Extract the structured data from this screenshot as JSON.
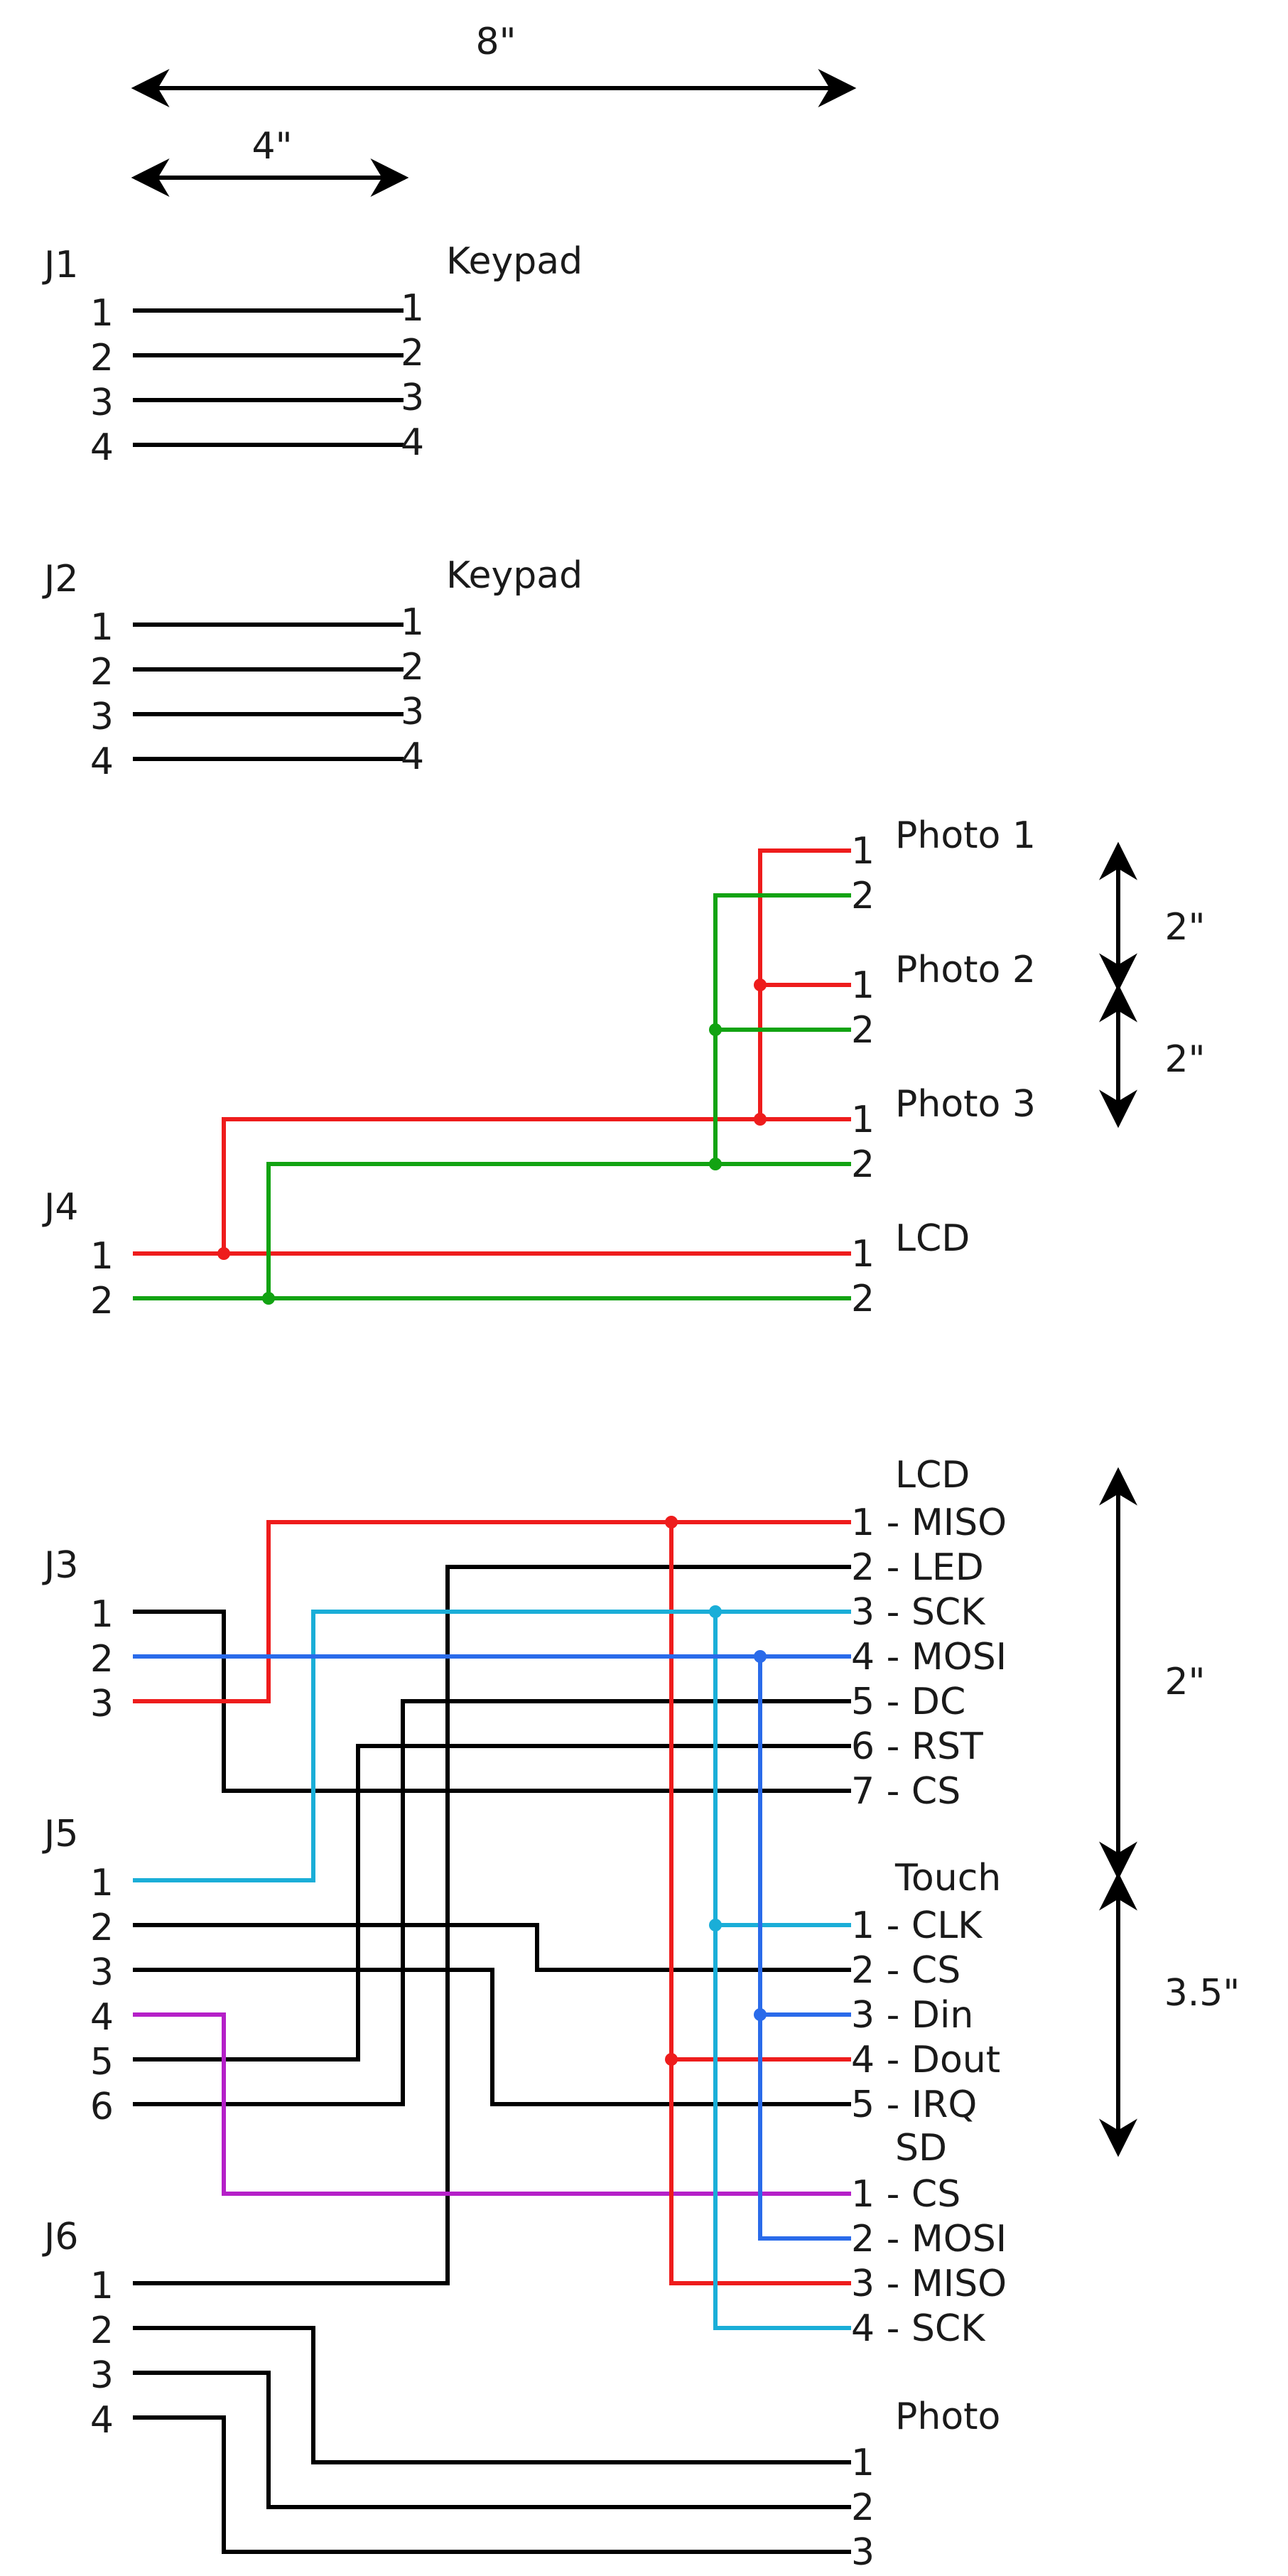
{
  "colors": {
    "black": "#000000",
    "red": "#ee1c1c",
    "green": "#12a312",
    "cyan": "#1aaed8",
    "blue": "#2a6bea",
    "purple": "#b520c8"
  },
  "dimensions": {
    "width_8": "8\"",
    "width_4": "4\"",
    "photo_spacing_1": "2\"",
    "photo_spacing_2": "2\"",
    "lcd_span": "2\"",
    "touch_span": "3.5\""
  },
  "j1": {
    "label": "J1",
    "pins": [
      "1",
      "2",
      "3",
      "4"
    ],
    "target_label": "Keypad",
    "target_pins": [
      "1",
      "2",
      "3",
      "4"
    ]
  },
  "j2": {
    "label": "J2",
    "pins": [
      "1",
      "2",
      "3",
      "4"
    ],
    "target_label": "Keypad",
    "target_pins": [
      "1",
      "2",
      "3",
      "4"
    ]
  },
  "j4": {
    "label": "J4",
    "pins": [
      "1",
      "2"
    ],
    "targets": [
      {
        "label": "Photo 1",
        "pins": [
          "1",
          "2"
        ]
      },
      {
        "label": "Photo 2",
        "pins": [
          "1",
          "2"
        ]
      },
      {
        "label": "Photo 3",
        "pins": [
          "1",
          "2"
        ]
      },
      {
        "label": "LCD",
        "pins": [
          "1",
          "2"
        ]
      }
    ]
  },
  "j3": {
    "label": "J3",
    "pins": [
      "1",
      "2",
      "3"
    ]
  },
  "j5": {
    "label": "J5",
    "pins": [
      "1",
      "2",
      "3",
      "4",
      "5",
      "6"
    ]
  },
  "j6": {
    "label": "J6",
    "pins": [
      "1",
      "2",
      "3",
      "4"
    ]
  },
  "lcd": {
    "label": "LCD",
    "pins": [
      "1 - MISO",
      "2 - LED",
      "3 - SCK",
      "4 - MOSI",
      "5 - DC",
      "6 - RST",
      "7 - CS"
    ]
  },
  "touch": {
    "label": "Touch",
    "pins": [
      "1 - CLK",
      "2 - CS",
      "3 - Din",
      "4 - Dout",
      "5 - IRQ"
    ]
  },
  "sd": {
    "label": "SD",
    "pins": [
      "1 - CS",
      "2 - MOSI",
      "3 - MISO",
      "4 - SCK"
    ]
  },
  "photo": {
    "label": "Photo",
    "pins": [
      "1",
      "2",
      "3"
    ]
  }
}
